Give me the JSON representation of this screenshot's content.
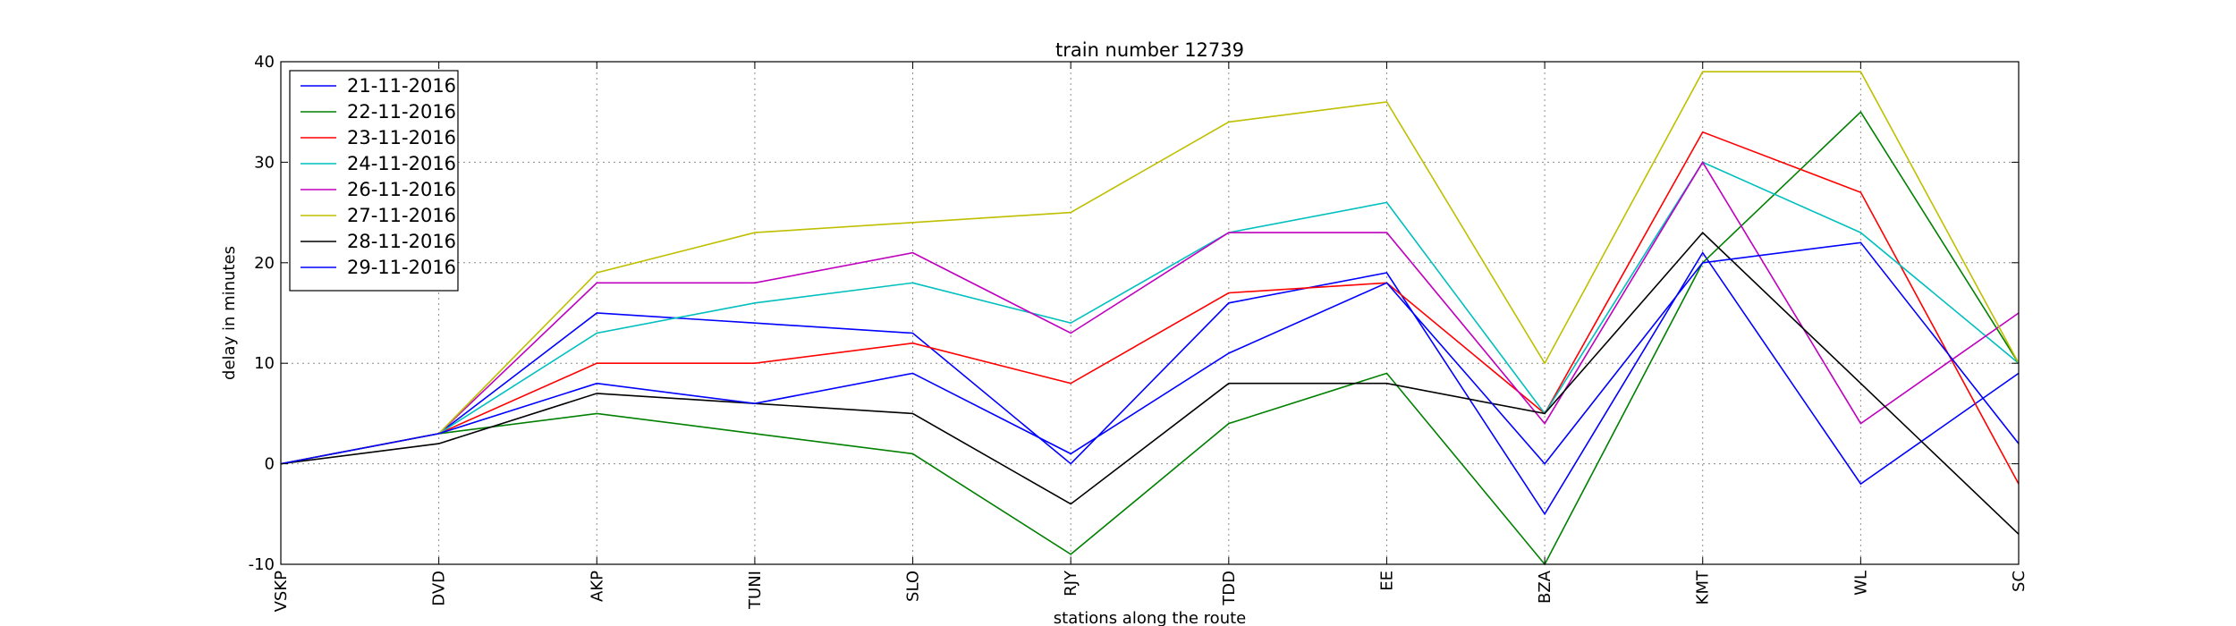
{
  "chart_data": {
    "type": "line",
    "title": "train number 12739",
    "xlabel": "stations along the route",
    "ylabel": "delay in minutes",
    "categories": [
      "VSKP",
      "DVD",
      "AKP",
      "TUNI",
      "SLO",
      "RJY",
      "TDD",
      "EE",
      "BZA",
      "KMT",
      "WL",
      "SC"
    ],
    "ylim": [
      -10,
      40
    ],
    "yticks": [
      -10,
      0,
      10,
      20,
      30,
      40
    ],
    "grid": true,
    "legend_position": "top-left",
    "series": [
      {
        "name": "21-11-2016",
        "color": "#0000ff",
        "values": [
          0,
          3,
          15,
          14,
          13,
          0,
          16,
          19,
          -5,
          21,
          -2,
          9
        ]
      },
      {
        "name": "22-11-2016",
        "color": "#008000",
        "values": [
          0,
          3,
          5,
          3,
          1,
          -9,
          4,
          9,
          -10,
          20,
          35,
          10
        ]
      },
      {
        "name": "23-11-2016",
        "color": "#ff0000",
        "values": [
          0,
          3,
          10,
          10,
          12,
          8,
          17,
          18,
          5,
          33,
          27,
          -2
        ]
      },
      {
        "name": "24-11-2016",
        "color": "#00bfbf",
        "values": [
          0,
          3,
          13,
          16,
          18,
          14,
          23,
          26,
          5,
          30,
          23,
          10
        ]
      },
      {
        "name": "26-11-2016",
        "color": "#bf00bf",
        "values": [
          0,
          3,
          18,
          18,
          21,
          13,
          23,
          23,
          4,
          30,
          4,
          15
        ]
      },
      {
        "name": "27-11-2016",
        "color": "#bfbf00",
        "values": [
          0,
          3,
          19,
          23,
          24,
          25,
          34,
          36,
          10,
          39,
          39,
          10
        ]
      },
      {
        "name": "28-11-2016",
        "color": "#000000",
        "values": [
          0,
          2,
          7,
          6,
          5,
          -4,
          8,
          8,
          5,
          23,
          8,
          -7
        ]
      },
      {
        "name": "29-11-2016",
        "color": "#0000ff",
        "values": [
          0,
          3,
          8,
          6,
          9,
          1,
          11,
          18,
          0,
          20,
          22,
          2
        ]
      }
    ]
  }
}
